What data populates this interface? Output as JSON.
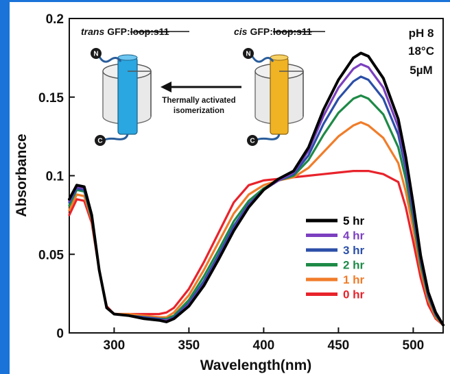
{
  "chart_data": {
    "type": "line",
    "xlabel": "Wavelength(nm)",
    "ylabel": "Absorbance",
    "xlim": [
      270,
      520
    ],
    "ylim": [
      0,
      0.2
    ],
    "x_ticks": [
      300,
      350,
      400,
      450,
      500
    ],
    "y_ticks": [
      {
        "value": 0,
        "label": "0"
      },
      {
        "value": 0.05,
        "label": "0.05"
      },
      {
        "value": 0.1,
        "label": "0.1"
      },
      {
        "value": 0.15,
        "label": "0.15"
      },
      {
        "value": 0.2,
        "label": "0.2"
      }
    ],
    "x": [
      270,
      275,
      280,
      285,
      290,
      295,
      300,
      310,
      320,
      330,
      335,
      340,
      350,
      360,
      370,
      380,
      390,
      400,
      410,
      420,
      430,
      440,
      450,
      460,
      465,
      470,
      480,
      490,
      495,
      500,
      505,
      510,
      515,
      520
    ],
    "series": [
      {
        "name": "0 hr",
        "color": "#e8232b",
        "values": [
          0.075,
          0.085,
          0.084,
          0.07,
          0.04,
          0.017,
          0.012,
          0.012,
          0.012,
          0.012,
          0.013,
          0.016,
          0.028,
          0.045,
          0.064,
          0.083,
          0.094,
          0.097,
          0.098,
          0.099,
          0.1,
          0.101,
          0.102,
          0.103,
          0.103,
          0.103,
          0.101,
          0.096,
          0.08,
          0.058,
          0.035,
          0.018,
          0.009,
          0.005
        ]
      },
      {
        "name": "1 hr",
        "color": "#f07d2a",
        "values": [
          0.078,
          0.088,
          0.087,
          0.072,
          0.04,
          0.016,
          0.012,
          0.012,
          0.011,
          0.01,
          0.01,
          0.013,
          0.024,
          0.04,
          0.058,
          0.076,
          0.088,
          0.094,
          0.097,
          0.099,
          0.105,
          0.115,
          0.125,
          0.132,
          0.134,
          0.132,
          0.124,
          0.108,
          0.09,
          0.066,
          0.04,
          0.021,
          0.01,
          0.005
        ]
      },
      {
        "name": "2 hr",
        "color": "#1e8a47",
        "values": [
          0.081,
          0.091,
          0.09,
          0.073,
          0.04,
          0.016,
          0.012,
          0.011,
          0.01,
          0.009,
          0.009,
          0.011,
          0.021,
          0.036,
          0.053,
          0.071,
          0.084,
          0.092,
          0.097,
          0.1,
          0.11,
          0.126,
          0.14,
          0.149,
          0.151,
          0.149,
          0.139,
          0.118,
          0.098,
          0.072,
          0.043,
          0.023,
          0.011,
          0.005
        ]
      },
      {
        "name": "3 hr",
        "color": "#2b4fa8",
        "values": [
          0.083,
          0.092,
          0.091,
          0.074,
          0.04,
          0.016,
          0.012,
          0.011,
          0.01,
          0.009,
          0.008,
          0.01,
          0.019,
          0.033,
          0.05,
          0.068,
          0.082,
          0.091,
          0.097,
          0.101,
          0.113,
          0.133,
          0.149,
          0.16,
          0.163,
          0.161,
          0.149,
          0.126,
          0.104,
          0.076,
          0.046,
          0.024,
          0.012,
          0.005
        ]
      },
      {
        "name": "4 hr",
        "color": "#7b3fbf",
        "values": [
          0.084,
          0.093,
          0.092,
          0.075,
          0.04,
          0.016,
          0.012,
          0.011,
          0.009,
          0.008,
          0.008,
          0.009,
          0.018,
          0.031,
          0.048,
          0.066,
          0.081,
          0.091,
          0.097,
          0.102,
          0.116,
          0.138,
          0.156,
          0.168,
          0.171,
          0.169,
          0.156,
          0.131,
          0.108,
          0.079,
          0.047,
          0.025,
          0.012,
          0.005
        ]
      },
      {
        "name": "5 hr",
        "color": "#000000",
        "values": [
          0.085,
          0.094,
          0.093,
          0.075,
          0.04,
          0.016,
          0.012,
          0.011,
          0.009,
          0.008,
          0.007,
          0.009,
          0.017,
          0.03,
          0.047,
          0.065,
          0.08,
          0.091,
          0.098,
          0.103,
          0.118,
          0.142,
          0.161,
          0.175,
          0.178,
          0.176,
          0.162,
          0.136,
          0.112,
          0.082,
          0.049,
          0.026,
          0.013,
          0.005
        ]
      }
    ],
    "legend_order": [
      "5 hr",
      "4 hr",
      "3 hr",
      "2 hr",
      "1 hr",
      "0 hr"
    ],
    "legend_position": "lower-right",
    "conditions": [
      "pH 8",
      "18°C",
      "5µM"
    ],
    "inset": {
      "left_italic": "trans",
      "left_rest": "GFP:",
      "left_strike": "loop:s11",
      "right_italic": "cis",
      "right_rest": "GFP:",
      "right_strike": "loop:s11",
      "arrow_line1": "Thermally activated",
      "arrow_line2": "isomerization",
      "n_term": "N",
      "c_term": "C"
    },
    "colors": {
      "frame": "#1a73d9",
      "trans_helix": "#2aa6e0",
      "cis_helix": "#f0b323",
      "barrel": "#d9d9d9"
    }
  }
}
